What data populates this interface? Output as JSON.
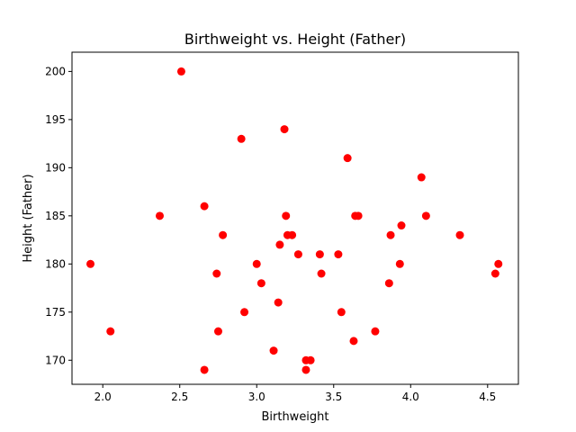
{
  "chart_data": {
    "type": "scatter",
    "title": "Birthweight vs. Height (Father)",
    "xlabel": "Birthweight",
    "ylabel": "Height (Father)",
    "xlim": [
      1.8,
      4.7
    ],
    "ylim": [
      167.5,
      202.0
    ],
    "xticks": [
      2.0,
      2.5,
      3.0,
      3.5,
      4.0,
      4.5
    ],
    "xtick_labels": [
      "2.0",
      "2.5",
      "3.0",
      "3.5",
      "4.0",
      "4.5"
    ],
    "yticks": [
      170,
      175,
      180,
      185,
      190,
      195,
      200
    ],
    "ytick_labels": [
      "170",
      "175",
      "180",
      "185",
      "190",
      "195",
      "200"
    ],
    "grid": false,
    "marker_color": "#ff0000",
    "series": [
      {
        "x": [
          2.51,
          1.92,
          2.05,
          2.37,
          2.66,
          2.66,
          2.74,
          2.75,
          2.78,
          2.9,
          2.92,
          3.0,
          3.03,
          3.11,
          3.14,
          3.15,
          3.18,
          3.19,
          3.2,
          3.23,
          3.27,
          3.32,
          3.32,
          3.35,
          3.41,
          3.42,
          3.53,
          3.55,
          3.59,
          3.63,
          3.64,
          3.66,
          3.77,
          3.86,
          3.87,
          3.93,
          3.94,
          4.07,
          4.1,
          4.32,
          4.55,
          4.57
        ],
        "y": [
          200,
          180,
          173,
          185,
          186,
          169,
          179,
          173,
          183,
          193,
          175,
          180,
          178,
          171,
          176,
          182,
          194,
          185,
          183,
          183,
          181,
          170,
          169,
          170,
          181,
          179,
          181,
          175,
          191,
          172,
          185,
          185,
          173,
          178,
          183,
          180,
          184,
          189,
          185,
          183,
          179,
          180
        ]
      }
    ]
  }
}
